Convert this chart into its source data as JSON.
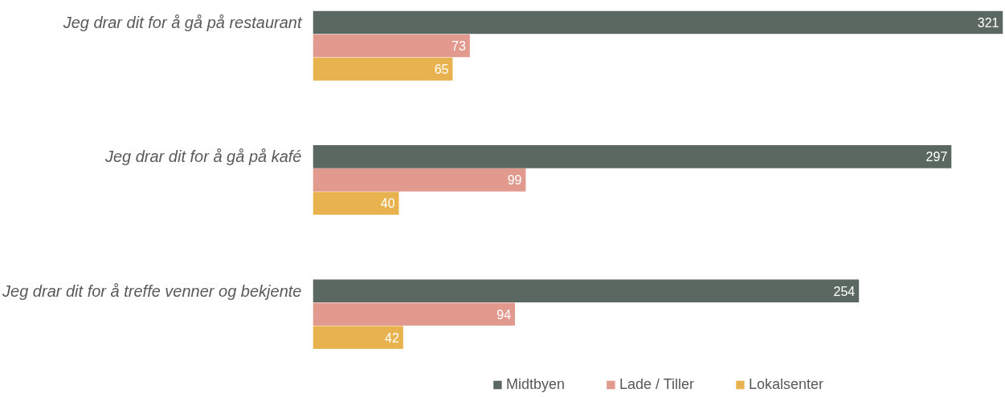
{
  "chart_data": {
    "type": "bar",
    "orientation": "horizontal",
    "categories": [
      "Jeg drar dit for å gå på restaurant",
      "Jeg drar dit for å gå på kafé",
      "Jeg drar dit for å treffe venner og bekjente"
    ],
    "series": [
      {
        "name": "Midtbyen",
        "color": "#5a6861",
        "values": [
          321,
          297,
          254
        ]
      },
      {
        "name": "Lade / Tiller",
        "color": "#e29a8e",
        "values": [
          73,
          99,
          94
        ]
      },
      {
        "name": "Lokalsenter",
        "color": "#e8b34f",
        "values": [
          65,
          40,
          42
        ]
      }
    ],
    "data_labels": true,
    "legend": "bottom"
  }
}
